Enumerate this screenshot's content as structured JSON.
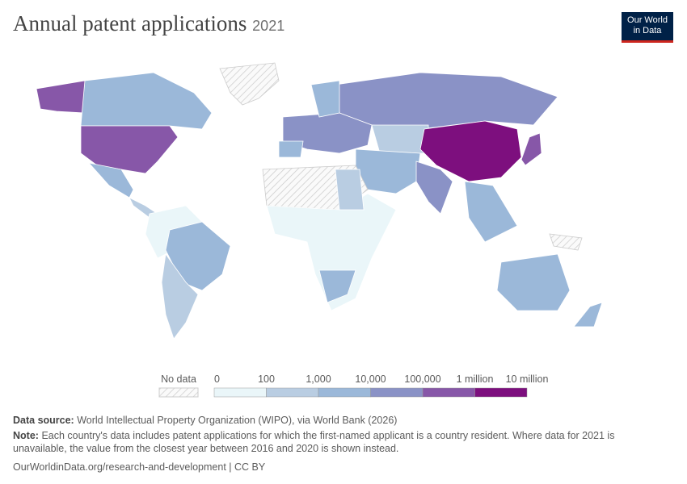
{
  "header": {
    "title": "Annual patent applications",
    "year": "2021",
    "logo": [
      "Our World",
      "in Data"
    ]
  },
  "legend": {
    "no_data": "No data",
    "labels": [
      "0",
      "100",
      "1,000",
      "10,000",
      "100,000",
      "1 million",
      "10 million"
    ],
    "colors": [
      "#eaf6f9",
      "#b9cde2",
      "#9bb8d9",
      "#8a92c6",
      "#8757a8",
      "#7d0f7e"
    ]
  },
  "footer": {
    "source_label": "Data source:",
    "source": "World Intellectual Property Organization (WIPO), via World Bank (2026)",
    "note_label": "Note:",
    "note": "Each country's data includes patent applications for which the first-named applicant is a country resident. Where data for 2021 is unavailable, the value from the closest year between 2016 and 2020 is shown instead.",
    "url": "OurWorldinData.org/research-and-development | CC BY"
  }
}
